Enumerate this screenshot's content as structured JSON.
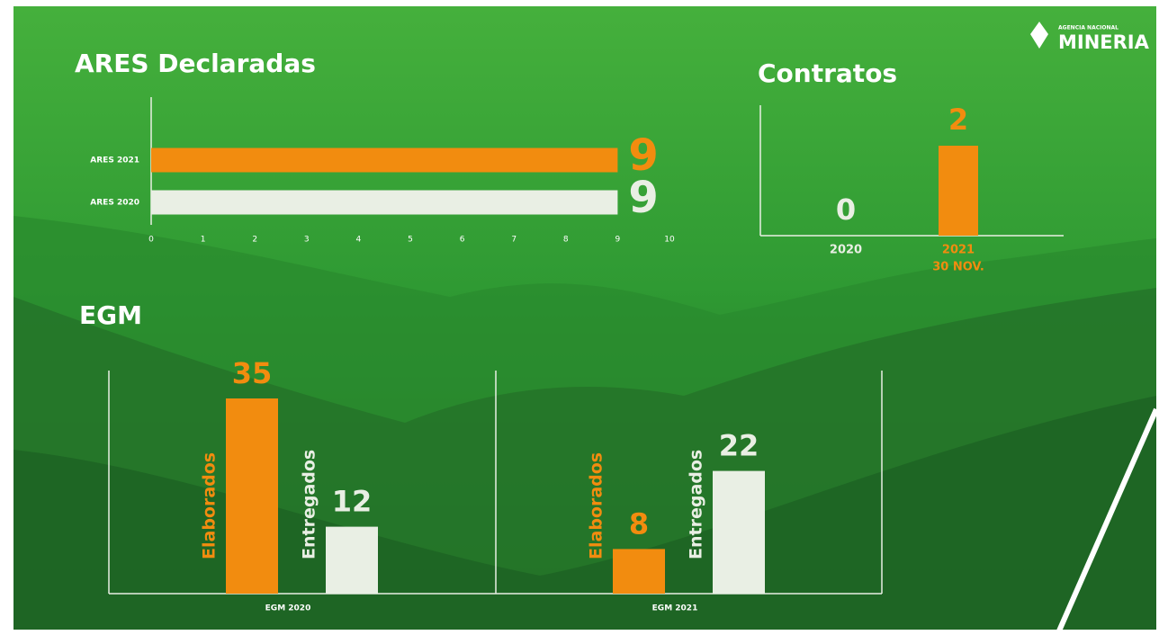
{
  "logo": {
    "small": "AGENCIA NACIONAL",
    "name": "MINERIA"
  },
  "chart_data": [
    {
      "type": "bar",
      "horizontal": true,
      "title": "ARES Declaradas",
      "categories": [
        "ARES 2021",
        "ARES 2020"
      ],
      "values": [
        9,
        9
      ],
      "colors": [
        "#f28c0f",
        "#e9efe4"
      ],
      "xlim": [
        0,
        10
      ],
      "xticks": [
        0,
        1,
        2,
        3,
        4,
        5,
        6,
        7,
        8,
        9,
        10
      ]
    },
    {
      "type": "bar",
      "title": "Contratos",
      "categories": [
        "2020",
        "2021"
      ],
      "category_sublabels": [
        null,
        "30 NOV."
      ],
      "values": [
        0,
        2
      ],
      "colors": [
        "#e9efe4",
        "#f28c0f"
      ],
      "ylim": [
        0,
        3
      ]
    },
    {
      "type": "bar",
      "title": "EGM",
      "categories": [
        "EGM 2020",
        "EGM 2021"
      ],
      "series": [
        {
          "name": "Elaborados",
          "color": "#f28c0f",
          "values": [
            35,
            8
          ]
        },
        {
          "name": "Entregados",
          "color": "#e9efe4",
          "values": [
            12,
            22
          ]
        }
      ],
      "ylim": [
        0,
        40
      ]
    }
  ]
}
